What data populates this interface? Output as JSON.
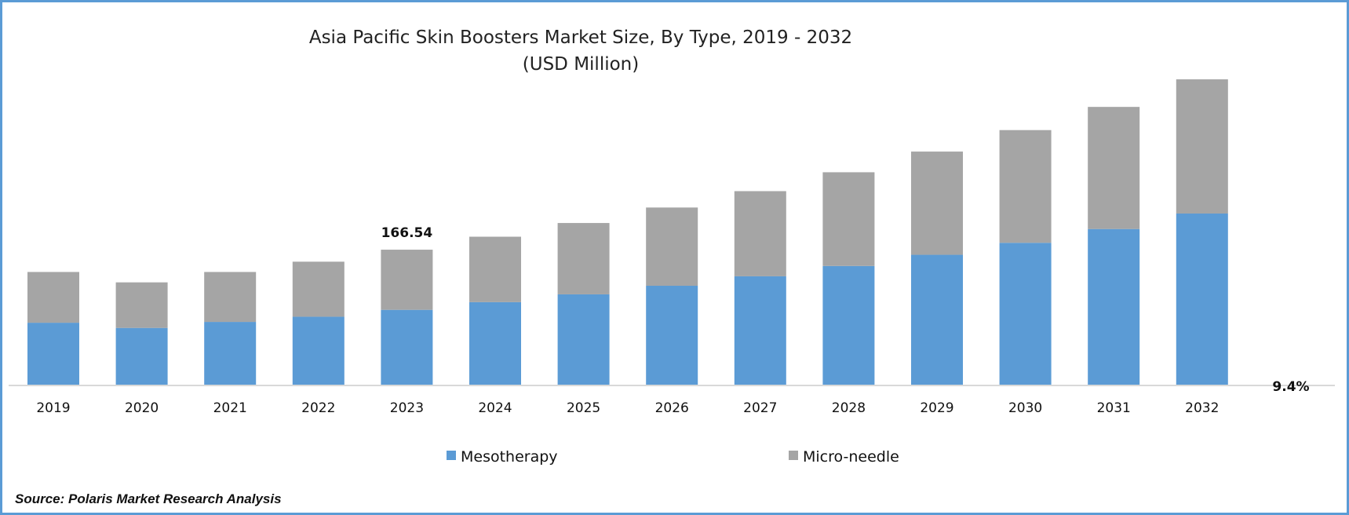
{
  "chart_data": {
    "type": "bar",
    "stacked": true,
    "title": "Asia Pacific Skin Boosters Market Size, By Type, 2019 - 2032",
    "subtitle": "(USD Million)",
    "xlabel": "",
    "ylabel": "",
    "categories": [
      "2019",
      "2020",
      "2021",
      "2022",
      "2023",
      "2024",
      "2025",
      "2026",
      "2027",
      "2028",
      "2029",
      "2030",
      "2031",
      "2032"
    ],
    "series": [
      {
        "name": "Mesotherapy",
        "color": "#5b9bd5",
        "values": [
          76.4,
          70.0,
          77.4,
          83.8,
          92.3,
          101.8,
          111.4,
          122.0,
          133.7,
          146.4,
          160.2,
          175.0,
          192.0,
          211.1
        ]
      },
      {
        "name": "Micro-needle",
        "color": "#a5a5a5",
        "values": [
          62.6,
          56.2,
          61.6,
          67.9,
          74.2,
          80.7,
          88.0,
          96.5,
          105.0,
          115.6,
          127.3,
          139.0,
          150.6,
          165.5
        ]
      }
    ],
    "ylim": [
      0,
      400
    ],
    "grid": false,
    "legend": "bottom",
    "annotations": [
      {
        "category": "2023",
        "text": "166.54"
      },
      {
        "text": "9.4%",
        "position": "right of axis"
      }
    ],
    "source": "Source: Polaris Market Research Analysis"
  }
}
